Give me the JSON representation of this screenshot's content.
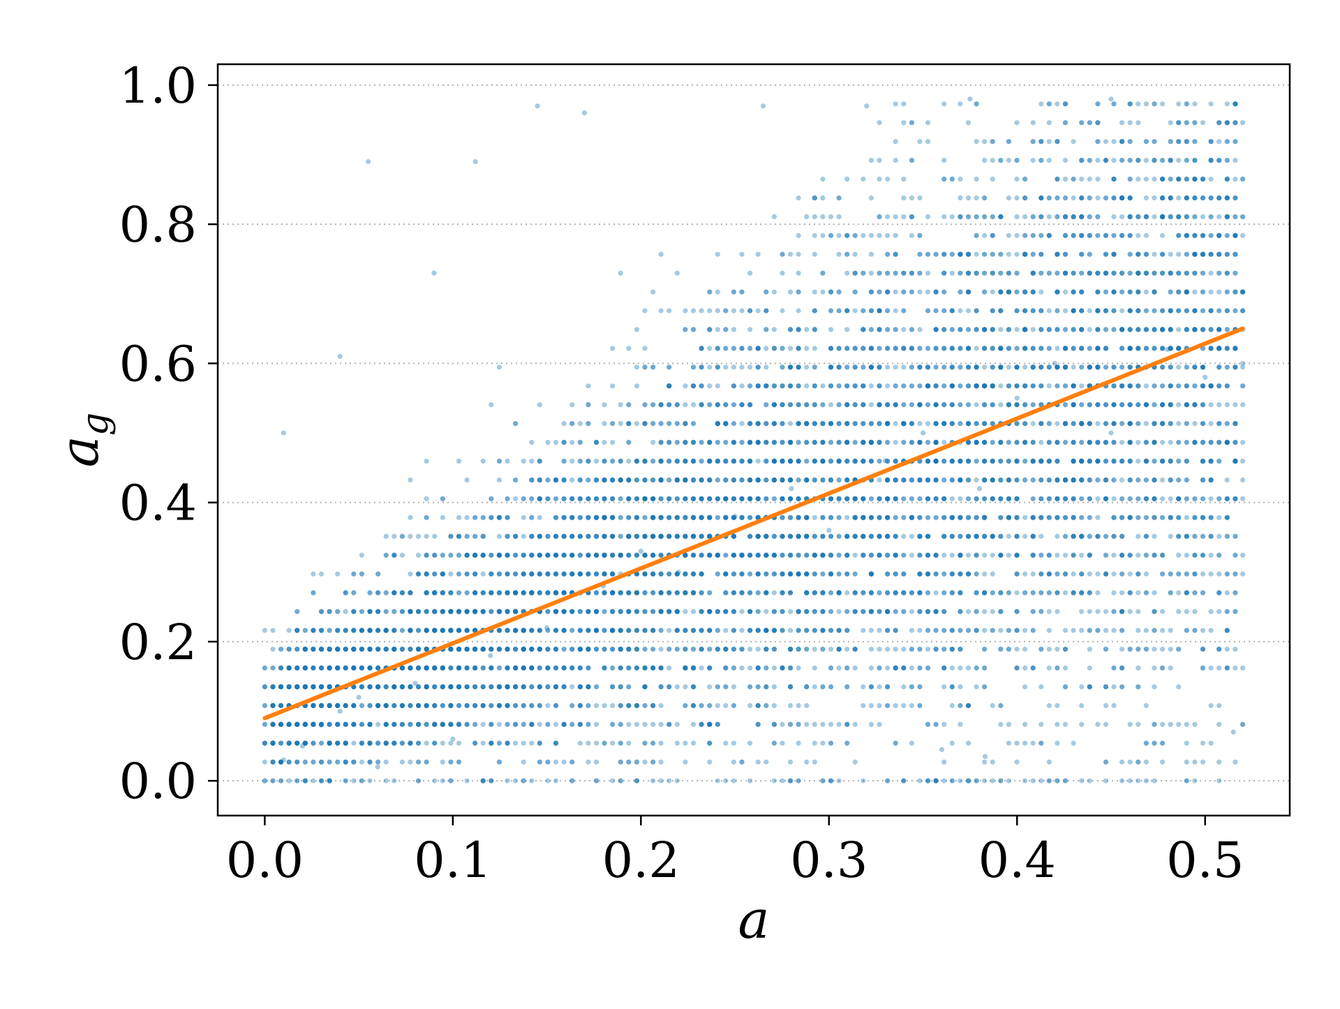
{
  "chart_data": {
    "type": "scatter",
    "title": "",
    "xlabel": "a",
    "ylabel": {
      "base": "a",
      "subscript": "g"
    },
    "xlim": [
      -0.025,
      0.545
    ],
    "ylim": [
      -0.05,
      1.03
    ],
    "xticks": [
      0.0,
      0.1,
      0.2,
      0.3,
      0.4,
      0.5
    ],
    "xtick_labels": [
      "0.0",
      "0.1",
      "0.2",
      "0.3",
      "0.4",
      "0.5"
    ],
    "yticks": [
      0.0,
      0.2,
      0.4,
      0.6,
      0.8,
      1.0
    ],
    "ytick_labels": [
      "0.0",
      "0.2",
      "0.4",
      "0.6",
      "0.8",
      "1.0"
    ],
    "grid": {
      "axis": "y",
      "style": "dotted"
    },
    "legend": "none",
    "series": [
      {
        "kind": "scatter",
        "color": "#1f77b4",
        "opacity": 0.4,
        "x_range": [
          0.0,
          0.52
        ],
        "y_range": [
          0.0,
          0.98
        ],
        "points": [
          [
            0.0,
            0.0
          ],
          [
            0.01,
            0.03
          ],
          [
            0.02,
            0.05
          ],
          [
            0.03,
            0.08
          ],
          [
            0.04,
            0.1
          ],
          [
            0.05,
            0.12
          ],
          [
            0.06,
            0.02
          ],
          [
            0.08,
            0.14
          ],
          [
            0.1,
            0.06
          ],
          [
            0.12,
            0.18
          ],
          [
            0.15,
            0.22
          ],
          [
            0.18,
            0.28
          ],
          [
            0.2,
            0.33
          ],
          [
            0.22,
            0.3
          ],
          [
            0.25,
            0.38
          ],
          [
            0.28,
            0.42
          ],
          [
            0.3,
            0.36
          ],
          [
            0.33,
            0.46
          ],
          [
            0.35,
            0.5
          ],
          [
            0.38,
            0.42
          ],
          [
            0.4,
            0.55
          ],
          [
            0.42,
            0.6
          ],
          [
            0.45,
            0.5
          ],
          [
            0.48,
            0.62
          ],
          [
            0.5,
            0.58
          ],
          [
            0.52,
            0.6
          ],
          [
            0.145,
            0.97
          ],
          [
            0.17,
            0.96
          ],
          [
            0.055,
            0.89
          ],
          [
            0.112,
            0.89
          ],
          [
            0.04,
            0.61
          ],
          [
            0.09,
            0.73
          ],
          [
            0.01,
            0.5
          ],
          [
            0.383,
            0.035
          ],
          [
            0.36,
            0.045
          ],
          [
            0.515,
            0.07
          ],
          [
            0.45,
            0.98
          ],
          [
            0.375,
            0.98
          ],
          [
            0.265,
            0.97
          ],
          [
            0.32,
            0.97
          ]
        ]
      },
      {
        "kind": "line",
        "color": "#ff7f0e",
        "points": [
          [
            0.0,
            0.09
          ],
          [
            0.52,
            0.65
          ]
        ]
      }
    ]
  }
}
